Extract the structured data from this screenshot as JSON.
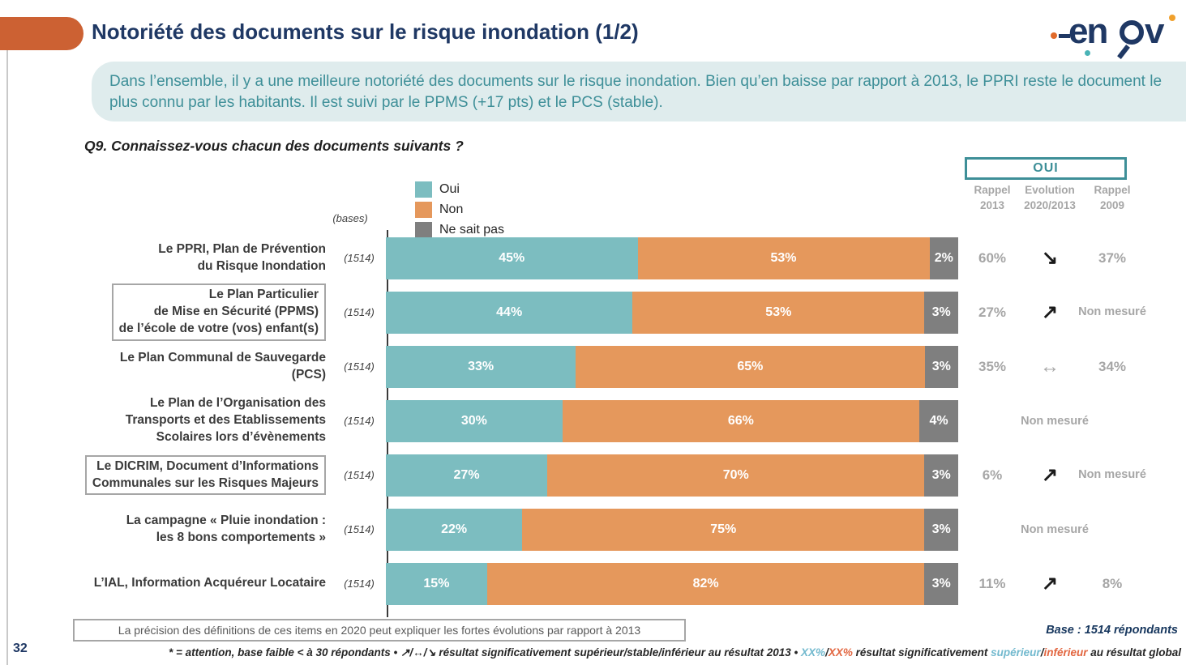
{
  "header": {
    "title": "Notoriété des documents sur le risque inondation (1/2)",
    "logo_part1": "en",
    "logo_part2": "v",
    "brand": "enov"
  },
  "summary": {
    "text": "Dans l’ensemble, il y a une meilleure notoriété des documents sur le risque inondation. Bien qu’en baisse par rapport à 2013, le PPRI reste le document le plus connu par les habitants. Il est suivi par le PPMS (+17 pts) et le PCS (stable)."
  },
  "question": "Q9. Connaissez-vous chacun des documents suivants ?",
  "bases_label": "(bases)",
  "legend": {
    "oui": {
      "label": "Oui",
      "color": "#7cbdc0"
    },
    "non": {
      "label": "Non",
      "color": "#e5985c"
    },
    "nsp": {
      "label": "Ne sait pas",
      "color": "#7f7f7f"
    }
  },
  "oui_header": {
    "title": "OUI",
    "col1_line1": "Rappel",
    "col1_line2": "2013",
    "col2_line1": "Evolution",
    "col2_line2": "2020/2013",
    "col3_line1": "Rappel",
    "col3_line2": "2009"
  },
  "chart_data": {
    "type": "bar",
    "orientation": "horizontal-stacked",
    "series_names": [
      "Oui",
      "Non",
      "Ne sait pas"
    ],
    "colors": {
      "oui": "#7cbdc0",
      "non": "#e5985c",
      "nsp": "#7f7f7f"
    },
    "xlim": [
      0,
      100
    ],
    "legend_position": "top",
    "rows": [
      {
        "label": "Le PPRI, Plan de Prévention\ndu Risque Inondation",
        "base": "(1514)",
        "oui": 45,
        "non": 53,
        "nsp": 2,
        "oui_label": "45%",
        "non_label": "53%",
        "nsp_label": "2%",
        "rappel2013": "60%",
        "evolution_glyph": "↘",
        "evolution_color": "#1a1a1a",
        "rappel2009": "37%"
      },
      {
        "label": "Le Plan Particulier\nde Mise en Sécurité (PPMS)\nde l’école de votre (vos) enfant(s)",
        "base": "(1514)",
        "oui": 44,
        "non": 53,
        "nsp": 3,
        "oui_label": "44%",
        "non_label": "53%",
        "nsp_label": "3%",
        "rappel2013": "27%",
        "evolution_glyph": "↗",
        "evolution_color": "#1a1a1a",
        "rappel2009": "Non mesuré"
      },
      {
        "label": "Le Plan Communal de Sauvegarde\n(PCS)",
        "base": "(1514)",
        "oui": 33,
        "non": 65,
        "nsp": 3,
        "oui_label": "33%",
        "non_label": "65%",
        "nsp_label": "3%",
        "rappel2013": "35%",
        "evolution_glyph": "↔",
        "evolution_color": "#a6a6a6",
        "rappel2009": "34%"
      },
      {
        "label": "Le Plan de l’Organisation des\nTransports et des Etablissements\nScolaires lors d’évènements",
        "base": "(1514)",
        "oui": 30,
        "non": 66,
        "nsp": 4,
        "oui_label": "30%",
        "non_label": "66%",
        "nsp_label": "4%",
        "non_mesure": "Non mesuré"
      },
      {
        "label": "Le DICRIM, Document d’Informations\nCommunales sur les Risques Majeurs",
        "base": "(1514)",
        "oui": 27,
        "non": 70,
        "nsp": 3,
        "oui_label": "27%",
        "non_label": "70%",
        "nsp_label": "3%",
        "rappel2013": "6%",
        "evolution_glyph": "↗",
        "evolution_color": "#1a1a1a",
        "rappel2009": "Non mesuré"
      },
      {
        "label": "La campagne « Pluie inondation :\nles 8 bons comportements »",
        "base": "(1514)",
        "oui": 22,
        "non": 75,
        "nsp": 3,
        "oui_label": "22%",
        "non_label": "75%",
        "nsp_label": "3%",
        "non_mesure": "Non mesuré"
      },
      {
        "label": "L’IAL, Information Acquéreur Locataire",
        "base": "(1514)",
        "oui": 15,
        "non": 82,
        "nsp": 3,
        "oui_label": "15%",
        "non_label": "82%",
        "nsp_label": "3%",
        "rappel2013": "11%",
        "evolution_glyph": "↗",
        "evolution_color": "#1a1a1a",
        "rappel2009": "8%"
      }
    ]
  },
  "footer": {
    "note_box": "La précision des définitions de ces items en 2020 peut expliquer les fortes évolutions par rapport à 2013",
    "base_total": "Base : 1514 répondants",
    "page_number": "32",
    "seg1": "* = attention, base faible < à 30 répondants • ↗/↔/↘  résultat significativement supérieur/stable/inférieur au résultat 2013 • ",
    "seg2": "XX%",
    "seg3": "/",
    "seg4": "XX%",
    "seg5": " résultat significativement ",
    "seg6": "supérieur",
    "seg7": "/",
    "seg8": "inférieur",
    "seg9": " au résultat global"
  }
}
